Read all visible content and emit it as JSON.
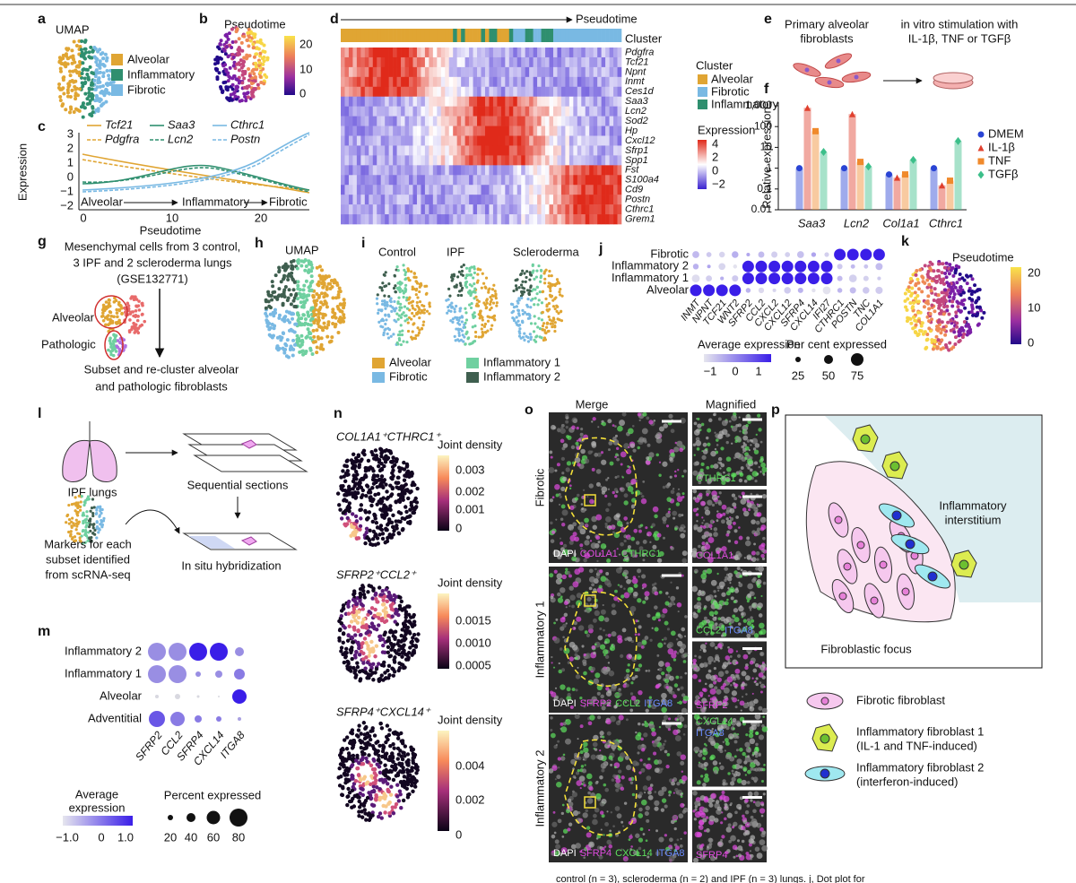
{
  "panels": {
    "a": {
      "letter": "a",
      "title": "UMAP",
      "legend": [
        "Alveolar",
        "Inflammatory",
        "Fibrotic"
      ]
    },
    "b": {
      "letter": "b",
      "title": "Pseudotime",
      "ticks": [
        "20",
        "10",
        "0"
      ]
    },
    "c": {
      "letter": "c",
      "legend": [
        "Tcf21",
        "Saa3",
        "Cthrc1",
        "Pdgfra",
        "Lcn2",
        "Postn"
      ],
      "ylabel": "Expression",
      "yticks": [
        "3",
        "2",
        "1",
        "0",
        "−1",
        "−2"
      ],
      "xticks": [
        "0",
        "10",
        "20"
      ],
      "xlabel": "Pseudotime",
      "stages": [
        "Alveolar",
        "Inflammatory",
        "Fibrotic"
      ]
    },
    "d": {
      "letter": "d",
      "arrow": "Pseudotime",
      "cluster": "Cluster",
      "genes": [
        "Pdgfra",
        "Tcf21",
        "Npnt",
        "Inmt",
        "Ces1d",
        "Saa3",
        "Lcn2",
        "Sod2",
        "Hp",
        "Cxcl12",
        "Sfrp1",
        "Spp1",
        "Fst",
        "S100a4",
        "Cd9",
        "Postn",
        "Cthrc1",
        "Grem1"
      ],
      "legend_title": "Cluster",
      "legend": [
        "Alveolar",
        "Fibrotic",
        "Inflammatory"
      ],
      "expr_title": "Expression",
      "expr_ticks": [
        "4",
        "2",
        "0",
        "−2"
      ]
    },
    "e": {
      "letter": "e",
      "left": [
        "Primary alveolar",
        "fibroblasts"
      ],
      "right": [
        "in vitro stimulation with",
        "IL-1β, TNF or TGFβ"
      ]
    },
    "f": {
      "letter": "f",
      "type": "bar",
      "ylabel": "Relative expression",
      "log": true,
      "ylim": [
        0.01,
        1000
      ],
      "yticks": [
        0.01,
        0.1,
        1,
        10,
        100,
        {
          "value": 1000,
          "label": "1,000"
        }
      ],
      "categories": [
        "Saa3",
        "Lcn2",
        "Col1a1",
        "Cthrc1"
      ],
      "series": [
        {
          "name": "DMEM",
          "color": "#2a44d4",
          "values": [
            1,
            1,
            0.5,
            1
          ]
        },
        {
          "name": "IL-1β",
          "color": "#e0402e",
          "values": [
            800,
            400,
            0.35,
            0.15
          ]
        },
        {
          "name": "TNF",
          "color": "#f08a2c",
          "values": [
            60,
            2,
            0.5,
            0.25
          ]
        },
        {
          "name": "TGFβ",
          "color": "#3cbf8a",
          "values": [
            6,
            1.2,
            2.5,
            20
          ]
        }
      ]
    },
    "g": {
      "letter": "g",
      "top": [
        "Mesenchymal cells from 3 control,",
        "3 IPF and 2 scleroderma lungs",
        "(GSE132771)"
      ],
      "alveolar": "Alveolar",
      "pathologic": "Pathologic",
      "bottom": [
        "Subset and re-cluster alveolar",
        "and pathologic fibroblasts"
      ]
    },
    "h": {
      "letter": "h",
      "title": "UMAP"
    },
    "i": {
      "letter": "i",
      "titles": [
        "Control",
        "IPF",
        "Scleroderma"
      ],
      "legend": [
        "Alveolar",
        "Fibrotic",
        "Inflammatory 1",
        "Inflammatory 2"
      ]
    },
    "j": {
      "letter": "j",
      "rows": [
        "Fibrotic",
        "Inflammatory 2",
        "Inflammatory 1",
        "Alveolar"
      ],
      "genes": [
        "INMT",
        "NPNT",
        "TCF21",
        "WNT2",
        "SFRP2",
        "CCL2",
        "CXCL2",
        "CXCL12",
        "SFRP4",
        "CXCL14",
        "IFI27",
        "CTHRC1",
        "POSTN",
        "TNC",
        "COL1A1"
      ],
      "avg_title": "Average expression",
      "avg_ticks": [
        "−1",
        "0",
        "1"
      ],
      "pct_title": "Per cent expressed",
      "pct_ticks": [
        "25",
        "50",
        "75"
      ]
    },
    "k": {
      "letter": "k",
      "title": "Pseudotime",
      "ticks": [
        "20",
        "10",
        "0"
      ]
    },
    "l": {
      "letter": "l",
      "lungs": "IPF lungs",
      "sections": "Sequential sections",
      "ish": "In situ hybridization",
      "markers": [
        "Markers for each",
        "subset identified",
        "from scRNA-seq"
      ]
    },
    "m": {
      "letter": "m",
      "rows": [
        "Inflammatory 2",
        "Inflammatory 1",
        "Alveolar",
        "Adventitial"
      ],
      "genes": [
        "SFRP2",
        "CCL2",
        "SFRP4",
        "CXCL14",
        "ITGA8"
      ],
      "avg_title": [
        "Average",
        "expression"
      ],
      "avg_ticks": [
        "−1.0",
        "0",
        "1.0"
      ],
      "pct_title": "Percent expressed",
      "pct_ticks": [
        "20",
        "40",
        "60",
        "80"
      ]
    },
    "n": {
      "letter": "n",
      "plots": [
        {
          "title": "COL1A1⁺CTHRC1⁺",
          "legend": "Joint density",
          "ticks": [
            "0.003",
            "0.002",
            "0.001",
            "0"
          ]
        },
        {
          "title": "SFRP2⁺CCL2⁺",
          "legend": "Joint density",
          "ticks": [
            "0.0015",
            "0.0010",
            "0.0005"
          ]
        },
        {
          "title": "SFRP4⁺CXCL14⁺",
          "legend": "Joint density",
          "ticks": [
            "0.004",
            "0.002",
            "0"
          ]
        }
      ]
    },
    "o": {
      "letter": "o",
      "merge": "Merge",
      "magnified": "Magnified",
      "rows": [
        "Fibrotic",
        "Inflammatory 1",
        "Inflammatory 2"
      ],
      "stains": [
        [
          "DAPI",
          "COL1A1",
          "CTHRC1"
        ],
        [
          "DAPI",
          "SFRP2",
          "CCL2",
          "ITGA8"
        ],
        [
          "DAPI",
          "SFRP4",
          "CXCL14",
          "ITGA8"
        ]
      ],
      "mag": [
        [
          "CTHRC1",
          "COL1A1"
        ],
        [
          "CCL2",
          "ITGA8",
          "SFRP2"
        ],
        [
          "CXCL14",
          "ITGA8",
          "SFRP4"
        ]
      ]
    },
    "p": {
      "letter": "p",
      "interstitium": [
        "Inflammatory",
        "interstitium"
      ],
      "focus": "Fibroblastic focus",
      "legend": [
        "Fibrotic fibroblast",
        "Inflammatory fibroblast 1",
        "(IL-1 and TNF-induced)",
        "Inflammatory fibroblast 2",
        "(interferon-induced)"
      ]
    }
  },
  "caption": "control (n = 3), scleroderma (n = 2) and IPF (n = 3) lungs. j, Dot plot for"
}
